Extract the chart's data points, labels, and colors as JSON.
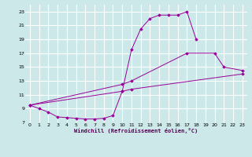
{
  "xlabel": "Windchill (Refroidissement éolien,°C)",
  "background_color": "#cce8e8",
  "grid_color": "#ffffff",
  "line_color": "#990099",
  "xlim": [
    -0.5,
    23.5
  ],
  "ylim": [
    7,
    24
  ],
  "yticks": [
    7,
    9,
    11,
    13,
    15,
    17,
    19,
    21,
    23
  ],
  "xticks": [
    0,
    1,
    2,
    3,
    4,
    5,
    6,
    7,
    8,
    9,
    10,
    11,
    12,
    13,
    14,
    15,
    16,
    17,
    18,
    19,
    20,
    21,
    22,
    23
  ],
  "curve1_x": [
    0,
    1,
    2,
    3,
    4,
    5,
    6,
    7,
    8,
    9,
    10,
    11,
    12,
    13,
    14,
    15,
    16,
    17,
    18
  ],
  "curve1_y": [
    9.5,
    9.0,
    8.5,
    7.8,
    7.7,
    7.6,
    7.5,
    7.5,
    7.6,
    8.0,
    11.5,
    17.5,
    20.5,
    22.0,
    22.5,
    22.5,
    22.5,
    23.0,
    19.0
  ],
  "curve2_x": [
    0,
    10,
    11,
    17,
    20,
    21,
    23
  ],
  "curve2_y": [
    9.5,
    12.5,
    13.0,
    17.0,
    17.0,
    15.0,
    14.5
  ],
  "curve3_x": [
    0,
    10,
    11,
    23
  ],
  "curve3_y": [
    9.5,
    11.5,
    11.8,
    14.0
  ]
}
